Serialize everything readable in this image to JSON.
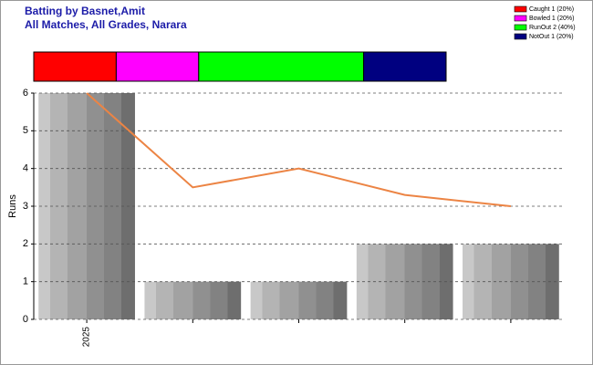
{
  "chart_data": [
    {
      "type": "strip",
      "series": [
        {
          "name": "Caught 1 (20%)",
          "color": "#ff0000",
          "values": [
            1
          ]
        },
        {
          "name": "Bowled 1 (20%)",
          "color": "#ff00ff",
          "values": [
            1
          ]
        },
        {
          "name": "RunOut 2 (40%)",
          "color": "#00ff00",
          "values": [
            2
          ]
        },
        {
          "name": "NotOut 1 (20%)",
          "color": "#000080",
          "values": [
            1
          ]
        }
      ]
    },
    {
      "type": "bar",
      "title": "Batting by Basnet,Amit",
      "subtitle": "All Matches, All Grades, Narara",
      "y_label": "Runs",
      "categories": [
        "2025",
        null,
        null,
        null,
        null
      ],
      "series": [
        {
          "type": "bar",
          "values": [
            6,
            1,
            1,
            2,
            2
          ]
        },
        {
          "type": "line",
          "color": "#ec8444",
          "values": [
            6,
            3.5,
            4,
            3.3,
            3
          ]
        }
      ],
      "ylim": [
        0,
        6
      ],
      "yticks": [
        0,
        1,
        2,
        3,
        4,
        5,
        6
      ],
      "grid": true
    }
  ]
}
